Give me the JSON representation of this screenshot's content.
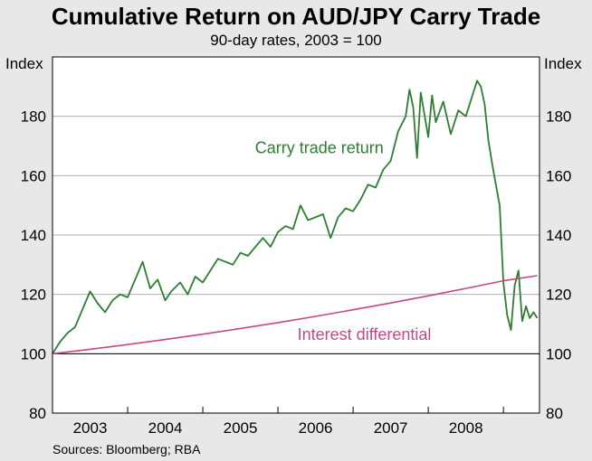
{
  "chart_data": {
    "type": "line",
    "title": "Cumulative Return on AUD/JPY Carry Trade",
    "subtitle": "90-day rates, 2003 = 100",
    "source": "Sources: Bloomberg; RBA",
    "ylabel_left": "Index",
    "ylabel_right": "Index",
    "ylim": [
      80,
      200
    ],
    "yticks": [
      80,
      100,
      120,
      140,
      160,
      180
    ],
    "x_range": [
      2002.5,
      2008.98
    ],
    "xtick_labels": [
      "2003",
      "2004",
      "2005",
      "2006",
      "2007",
      "2008"
    ],
    "xtick_centers": [
      2003.0,
      2004.0,
      2005.0,
      2006.0,
      2007.0,
      2008.0
    ],
    "year_boundaries": [
      2003.5,
      2004.5,
      2005.5,
      2006.5,
      2007.5,
      2008.5
    ],
    "baseline": 100,
    "grid": true,
    "series": [
      {
        "name": "Carry trade return",
        "color": "#2e7d32",
        "x": [
          2002.5,
          2002.6,
          2002.7,
          2002.8,
          2002.9,
          2003.0,
          2003.1,
          2003.2,
          2003.3,
          2003.4,
          2003.5,
          2003.6,
          2003.7,
          2003.8,
          2003.9,
          2004.0,
          2004.08,
          2004.2,
          2004.3,
          2004.4,
          2004.5,
          2004.6,
          2004.7,
          2004.8,
          2004.9,
          2005.0,
          2005.1,
          2005.2,
          2005.3,
          2005.4,
          2005.5,
          2005.6,
          2005.7,
          2005.8,
          2005.9,
          2006.0,
          2006.1,
          2006.2,
          2006.3,
          2006.4,
          2006.5,
          2006.6,
          2006.7,
          2006.8,
          2006.9,
          2007.0,
          2007.1,
          2007.2,
          2007.25,
          2007.3,
          2007.35,
          2007.4,
          2007.5,
          2007.55,
          2007.6,
          2007.7,
          2007.8,
          2007.9,
          2008.0,
          2008.1,
          2008.15,
          2008.2,
          2008.25,
          2008.3,
          2008.35,
          2008.4,
          2008.45,
          2008.5,
          2008.55,
          2008.6,
          2008.65,
          2008.7,
          2008.75,
          2008.8,
          2008.85,
          2008.9,
          2008.95
        ],
        "values": [
          100,
          104,
          107,
          109,
          115,
          121,
          117,
          114,
          118,
          120,
          119,
          125,
          131,
          122,
          125,
          118,
          121,
          124,
          120,
          126,
          124,
          128,
          132,
          131,
          130,
          134,
          133,
          136,
          139,
          136,
          141,
          143,
          142,
          150,
          145,
          146,
          147,
          139,
          146,
          149,
          148,
          152,
          157,
          156,
          162,
          165,
          175,
          180,
          189,
          183,
          166,
          188,
          173,
          187,
          178,
          185,
          174,
          182,
          180,
          188,
          192,
          190,
          184,
          172,
          164,
          157,
          150,
          124,
          113,
          108,
          123,
          128,
          111,
          116,
          112,
          114,
          112
        ]
      },
      {
        "name": "Interest differential",
        "color": "#c04a86",
        "x": [
          2002.5,
          2003.0,
          2003.5,
          2004.0,
          2004.5,
          2005.0,
          2005.5,
          2006.0,
          2006.5,
          2007.0,
          2007.5,
          2008.0,
          2008.5,
          2008.95
        ],
        "values": [
          100,
          101.5,
          103.1,
          104.8,
          106.6,
          108.5,
          110.5,
          112.6,
          114.8,
          117.1,
          119.5,
          122.0,
          124.6,
          126.3
        ]
      }
    ],
    "annotations": [
      {
        "text": "Carry trade return",
        "color": "#2e7d32",
        "x": 2006.05,
        "y": 167.5
      },
      {
        "text": "Interest differential",
        "color": "#c04a86",
        "x": 2006.65,
        "y": 104.7
      }
    ]
  }
}
